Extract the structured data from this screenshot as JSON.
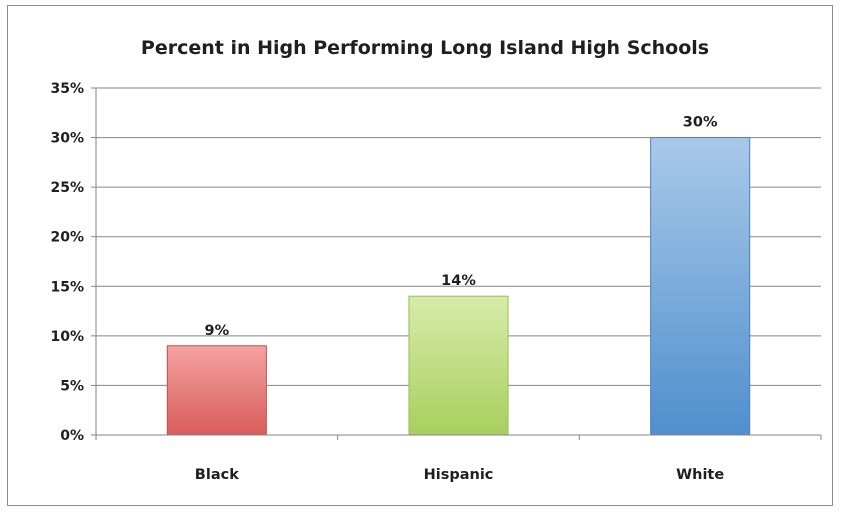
{
  "chart_data": {
    "type": "bar",
    "title": "Percent in High Performing Long Island High Schools",
    "xlabel": "",
    "ylabel": "",
    "categories": [
      "Black",
      "Hispanic",
      "White"
    ],
    "values": [
      9,
      14,
      30
    ],
    "data_labels": [
      "9%",
      "14%",
      "30%"
    ],
    "ylim": [
      0,
      35
    ],
    "y_ticks": [
      0,
      5,
      10,
      15,
      20,
      25,
      30,
      35
    ],
    "y_tick_labels": [
      "0%",
      "5%",
      "10%",
      "15%",
      "20%",
      "25%",
      "30%",
      "35%"
    ],
    "grid": true,
    "legend": "none",
    "bar_colors": [
      {
        "top": "#f4a3a2",
        "bottom": "#d85d5b",
        "stroke": "#c0504d"
      },
      {
        "top": "#d8ecaa",
        "bottom": "#a7cf5e",
        "stroke": "#9bbb59"
      },
      {
        "top": "#a9c9ea",
        "bottom": "#4f8fcd",
        "stroke": "#4f81bd"
      }
    ],
    "grid_color": "#868686",
    "axis_color": "#868686"
  }
}
